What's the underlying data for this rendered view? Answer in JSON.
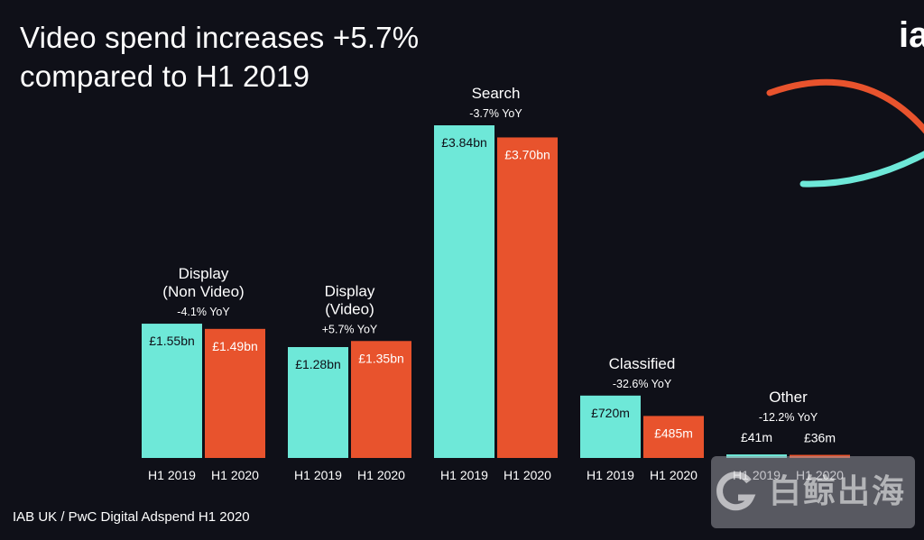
{
  "header": {
    "title_line1": "Video spend increases +5.7%",
    "title_line2": "compared to H1 2019",
    "logo_text": "ia"
  },
  "footer": {
    "source": "IAB UK / PwC Digital Adspend H1 2020"
  },
  "watermark": {
    "text": "白鲸出海",
    "icon": "g-logo-icon"
  },
  "colors": {
    "background": "#0f1018",
    "h1_2019": "#6ee8d8",
    "h1_2020": "#e8532d",
    "text": "#ffffff",
    "bar_label_2019": "#0f1018",
    "bar_label_2020": "#ffffff"
  },
  "chart_data": {
    "type": "bar",
    "title": "Video spend increases +5.7% compared to H1 2019",
    "series": [
      {
        "name": "H1 2019",
        "values": [
          1.55,
          1.28,
          3.84,
          0.72,
          0.041
        ]
      },
      {
        "name": "H1 2020",
        "values": [
          1.49,
          1.35,
          3.7,
          0.485,
          0.036
        ]
      }
    ],
    "units": "£bn",
    "categories": [
      {
        "name_lines": [
          "Display",
          "(Non Video)"
        ],
        "yoy": "-4.1% YoY",
        "value_labels": [
          "£1.55bn",
          "£1.49bn"
        ],
        "period_labels": [
          "H1 2019",
          "H1 2020"
        ]
      },
      {
        "name_lines": [
          "Display",
          "(Video)"
        ],
        "yoy": "+5.7% YoY",
        "value_labels": [
          "£1.28bn",
          "£1.35bn"
        ],
        "period_labels": [
          "H1 2019",
          "H1 2020"
        ]
      },
      {
        "name_lines": [
          "Search"
        ],
        "yoy": "-3.7% YoY",
        "value_labels": [
          "£3.84bn",
          "£3.70bn"
        ],
        "period_labels": [
          "H1 2019",
          "H1 2020"
        ]
      },
      {
        "name_lines": [
          "Classified"
        ],
        "yoy": "-32.6% YoY",
        "value_labels": [
          "£720m",
          "£485m"
        ],
        "period_labels": [
          "H1 2019",
          "H1 2020"
        ]
      },
      {
        "name_lines": [
          "Other"
        ],
        "yoy": "-12.2% YoY",
        "value_labels": [
          "£41m",
          "£36m"
        ],
        "period_labels": [
          "H1 2019",
          "H1 2020"
        ]
      }
    ],
    "xlabel": "",
    "ylabel": "",
    "ylim": [
      0,
      4.0
    ],
    "grid": false,
    "legend": "none"
  }
}
